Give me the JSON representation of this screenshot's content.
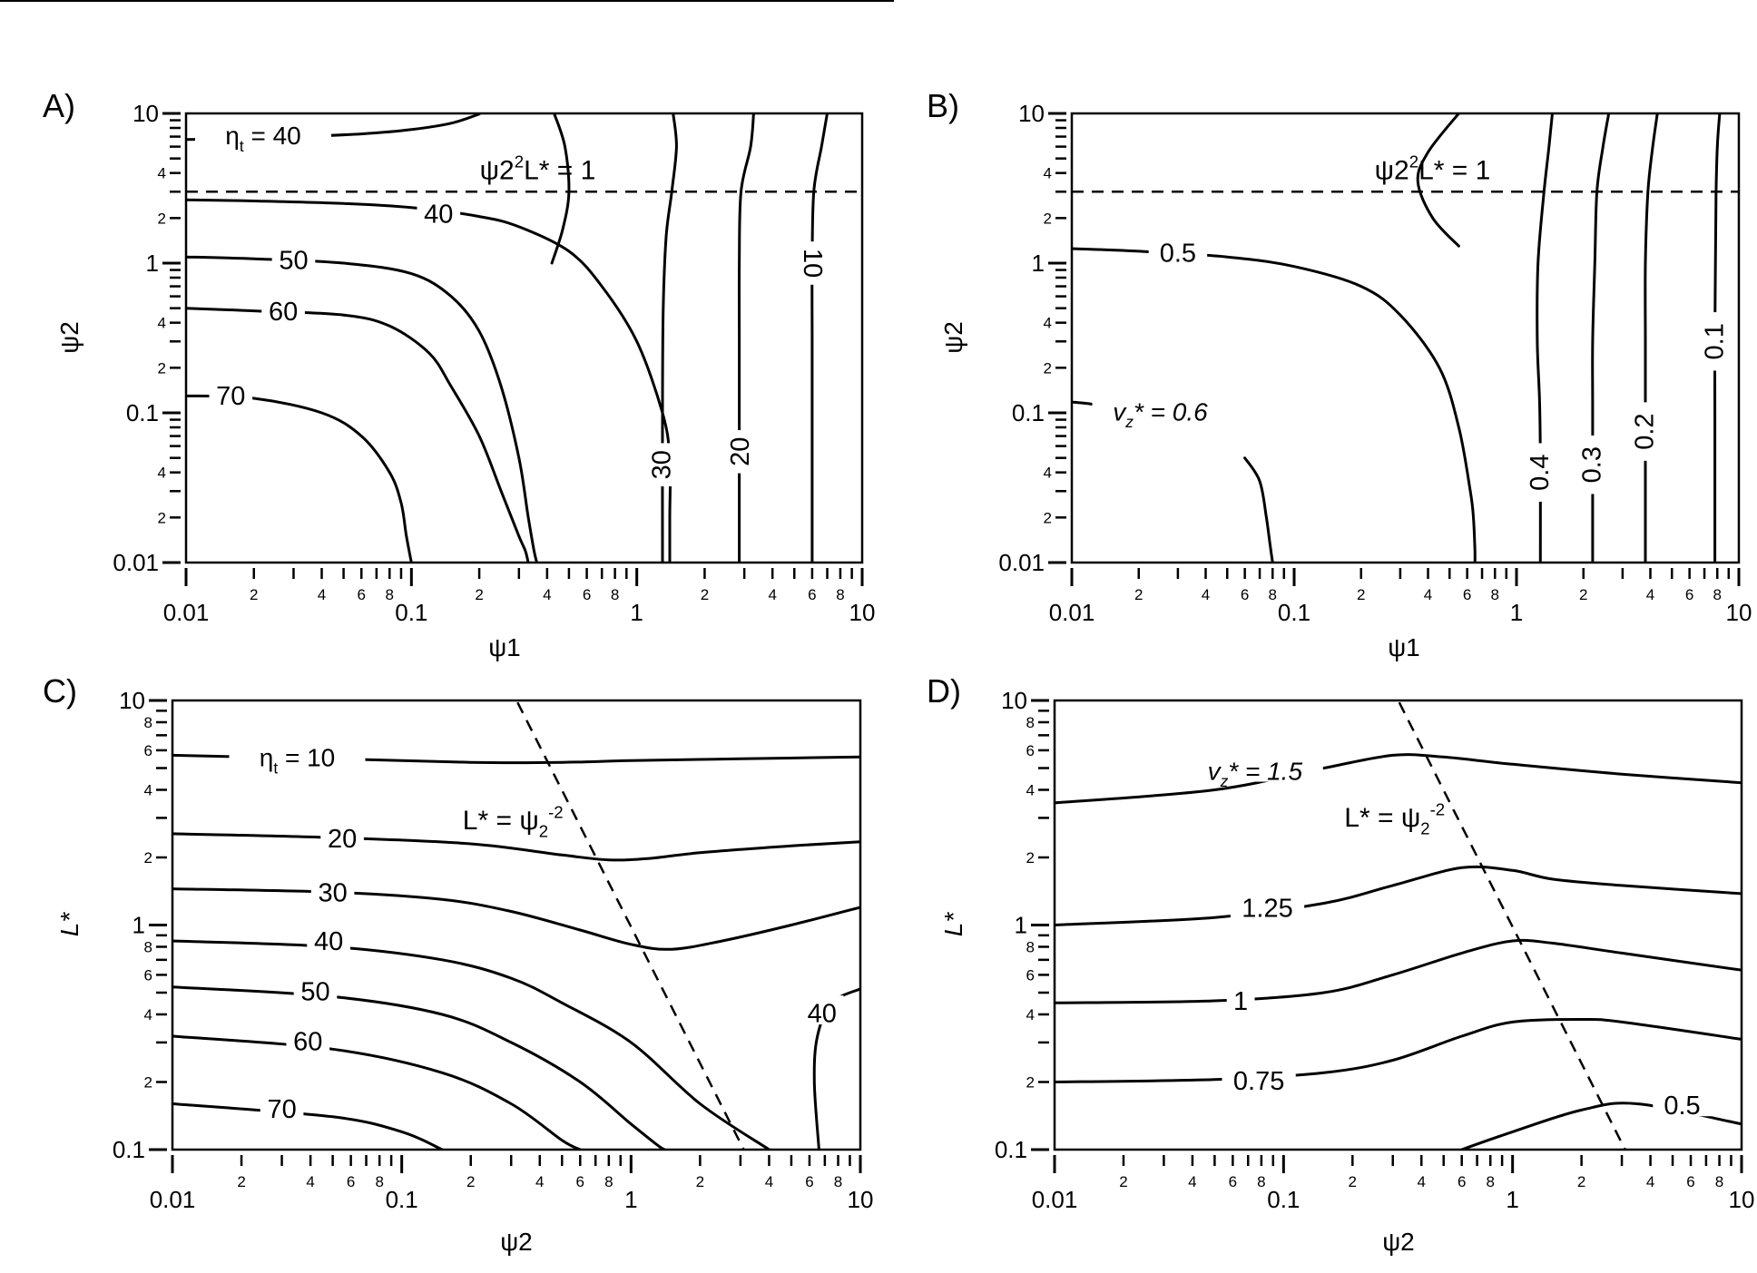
{
  "colors": {
    "line": "#000000",
    "background": "#ffffff"
  },
  "chart_data": [
    {
      "panel": "A)",
      "type": "line",
      "subtype": "contour",
      "xlabel": "ψ1",
      "ylabel": "ψ2",
      "xscale": "log",
      "yscale": "log",
      "xlim": [
        0.01,
        10
      ],
      "ylim": [
        0.01,
        10
      ],
      "x_ticks": [
        "0.01",
        "0.1",
        "1",
        "10"
      ],
      "y_ticks": [
        "0.01",
        "0.1",
        "1",
        "10"
      ],
      "minor_tick_labels": [
        "2",
        "4",
        "6",
        "8"
      ],
      "y_minor_tick_labels": [
        "2",
        "4"
      ],
      "guide": {
        "label": "ψ22L* = 1",
        "label_main": "ψ2",
        "label_sup": "2",
        "label_tail": "L* = 1",
        "x": [
          0.01,
          10
        ],
        "y": [
          3.0,
          3.0
        ]
      },
      "series": [
        {
          "name": "ηt = 40",
          "label_main": "η",
          "label_sub": "t",
          "label_tail": " = 40",
          "label_x": 0.022,
          "label_y": 7.0,
          "x": [
            0.01,
            0.018,
            0.032,
            0.06,
            0.1,
            0.15,
            0.2
          ],
          "y": [
            6.7,
            6.8,
            7.0,
            7.3,
            7.8,
            8.6,
            9.9
          ]
        },
        {
          "name": "40 (upper)",
          "x": [
            0.43,
            0.48,
            0.5,
            0.47,
            0.42
          ],
          "y": [
            10,
            6.0,
            3.0,
            1.7,
            1.0
          ]
        },
        {
          "name": "40",
          "label": "40",
          "label_x": 0.132,
          "label_y": 2.1,
          "x": [
            0.01,
            0.02,
            0.05,
            0.1,
            0.2,
            0.3,
            0.5,
            0.7,
            1.0,
            1.3,
            1.4,
            1.4,
            1.4
          ],
          "y": [
            2.65,
            2.6,
            2.5,
            2.35,
            2.05,
            1.75,
            1.2,
            0.7,
            0.3,
            0.1,
            0.05,
            0.02,
            0.01
          ]
        },
        {
          "name": "30",
          "label": "30",
          "label_x": 1.3,
          "label_y": 0.045,
          "x": [
            1.45,
            1.5,
            1.43,
            1.35,
            1.31,
            1.3,
            1.3
          ],
          "y": [
            10,
            6.0,
            3.0,
            1.5,
            0.5,
            0.1,
            0.01
          ]
        },
        {
          "name": "20",
          "label": "20",
          "label_x": 2.9,
          "label_y": 0.055,
          "x": [
            3.3,
            3.2,
            2.9,
            2.85,
            2.85,
            2.85,
            2.85
          ],
          "y": [
            10,
            6.0,
            3.0,
            1.0,
            0.3,
            0.1,
            0.01
          ]
        },
        {
          "name": "10",
          "label": "10",
          "label_x": 6.0,
          "label_y": 1.0,
          "x": [
            7.0,
            6.6,
            6.1,
            6.0,
            6.0,
            6.0,
            6.0
          ],
          "y": [
            10,
            6.0,
            3.0,
            1.0,
            0.3,
            0.1,
            0.01
          ]
        },
        {
          "name": "50",
          "label": "50",
          "label_x": 0.03,
          "label_y": 1.03,
          "x": [
            0.01,
            0.02,
            0.05,
            0.1,
            0.15,
            0.2,
            0.25,
            0.3,
            0.33,
            0.35,
            0.36
          ],
          "y": [
            1.1,
            1.07,
            1.0,
            0.85,
            0.6,
            0.35,
            0.15,
            0.05,
            0.02,
            0.012,
            0.01
          ]
        },
        {
          "name": "60",
          "label": "60",
          "label_x": 0.027,
          "label_y": 0.47,
          "x": [
            0.01,
            0.02,
            0.05,
            0.08,
            0.12,
            0.15,
            0.2,
            0.25,
            0.3,
            0.32,
            0.33
          ],
          "y": [
            0.5,
            0.48,
            0.45,
            0.38,
            0.25,
            0.15,
            0.07,
            0.03,
            0.015,
            0.012,
            0.01
          ]
        },
        {
          "name": "70",
          "label": "70",
          "label_x": 0.0158,
          "label_y": 0.128,
          "x": [
            0.01,
            0.02,
            0.04,
            0.06,
            0.08,
            0.09,
            0.095,
            0.1
          ],
          "y": [
            0.13,
            0.125,
            0.1,
            0.07,
            0.04,
            0.025,
            0.015,
            0.01
          ]
        }
      ]
    },
    {
      "panel": "B)",
      "type": "line",
      "subtype": "contour",
      "xlabel": "ψ1",
      "ylabel": "ψ2",
      "xscale": "log",
      "yscale": "log",
      "xlim": [
        0.01,
        10
      ],
      "ylim": [
        0.01,
        10
      ],
      "x_ticks": [
        "0.01",
        "0.1",
        "1",
        "10"
      ],
      "y_ticks": [
        "0.01",
        "0.1",
        "1",
        "10"
      ],
      "minor_tick_labels": [
        "2",
        "4",
        "6",
        "8"
      ],
      "y_minor_tick_labels": [
        "2",
        "4"
      ],
      "guide": {
        "label": "ψ22L* = 1",
        "label_main": "ψ2",
        "label_sup": "2",
        "label_tail": "L* = 1",
        "x": [
          0.01,
          10
        ],
        "y": [
          3.0,
          3.0
        ]
      },
      "series": [
        {
          "name": "0.5",
          "label": "0.5",
          "label_x": 0.03,
          "label_y": 1.15,
          "x": [
            0.01,
            0.02,
            0.05,
            0.1,
            0.2,
            0.3,
            0.45,
            0.55,
            0.62,
            0.64,
            0.65,
            0.65
          ],
          "y": [
            1.25,
            1.2,
            1.1,
            0.95,
            0.7,
            0.45,
            0.2,
            0.08,
            0.03,
            0.02,
            0.012,
            0.01
          ]
        },
        {
          "name": "0.5 (upper)",
          "x": [
            0.55,
            0.4,
            0.36,
            0.42,
            0.55
          ],
          "y": [
            10,
            5.5,
            3.5,
            2.0,
            1.3
          ]
        },
        {
          "name": "0.4",
          "label": "0.4",
          "label_x": 1.28,
          "label_y": 0.04,
          "x": [
            1.45,
            1.4,
            1.33,
            1.25,
            1.24,
            1.27,
            1.28,
            1.28
          ],
          "y": [
            10,
            6.0,
            3.0,
            1.0,
            0.3,
            0.12,
            0.05,
            0.01
          ]
        },
        {
          "name": "0.3",
          "label": "0.3",
          "label_x": 2.2,
          "label_y": 0.045,
          "x": [
            2.6,
            2.45,
            2.3,
            2.25,
            2.2,
            2.2,
            2.2
          ],
          "y": [
            10,
            6.0,
            3.0,
            1.0,
            0.3,
            0.1,
            0.01
          ]
        },
        {
          "name": "0.2",
          "label": "0.2",
          "label_x": 3.8,
          "label_y": 0.075,
          "x": [
            4.3,
            4.1,
            3.9,
            3.8,
            3.8,
            3.8,
            3.8
          ],
          "y": [
            10,
            6.0,
            3.0,
            1.0,
            0.3,
            0.1,
            0.01
          ]
        },
        {
          "name": "0.1",
          "label": "0.1",
          "label_x": 7.8,
          "label_y": 0.3,
          "x": [
            8.2,
            8.0,
            7.9,
            7.85,
            7.8,
            7.8,
            7.8
          ],
          "y": [
            10,
            6.0,
            3.0,
            1.0,
            0.3,
            0.1,
            0.01
          ]
        },
        {
          "name": "vz* = 0.6",
          "label_main": "v",
          "label_sub": "z",
          "label_tail": "* = 0.6",
          "label_x": 0.025,
          "label_y": 0.1,
          "x": [
            0.01,
            0.012,
            0.014
          ],
          "y": [
            0.118,
            0.115,
            0.11
          ]
        },
        {
          "name": "0.6 (lower)",
          "x": [
            0.06,
            0.07,
            0.075,
            0.078,
            0.08
          ],
          "y": [
            0.05,
            0.035,
            0.02,
            0.013,
            0.01
          ]
        }
      ]
    },
    {
      "panel": "C)",
      "type": "line",
      "subtype": "contour",
      "xlabel": "ψ2",
      "ylabel": "L*",
      "xscale": "log",
      "yscale": "log",
      "xlim": [
        0.01,
        10
      ],
      "ylim": [
        0.1,
        10
      ],
      "x_ticks": [
        "0.01",
        "0.1",
        "1",
        "10"
      ],
      "y_ticks": [
        "0.1",
        "1",
        "10"
      ],
      "minor_tick_labels": [
        "2",
        "4",
        "6",
        "8"
      ],
      "y_minor_tick_labels": [
        "2",
        "4",
        "6",
        "8"
      ],
      "guide": {
        "label": "L* = ψ2-2",
        "label_main": "L* = ψ",
        "label_sub": "2",
        "label_sup": "-2",
        "x": [
          0.32,
          3.1
        ],
        "y": [
          9.8,
          0.1
        ]
      },
      "series": [
        {
          "name": "ηt = 10",
          "label_main": "η",
          "label_sub": "t",
          "label_tail": " = 10",
          "label_x": 0.035,
          "label_y": 5.5,
          "x": [
            0.01,
            0.05,
            0.2,
            0.5,
            1.0,
            3.0,
            10
          ],
          "y": [
            5.7,
            5.5,
            5.3,
            5.3,
            5.4,
            5.5,
            5.6
          ]
        },
        {
          "name": "20",
          "label": "20",
          "label_x": 0.055,
          "label_y": 2.4,
          "x": [
            0.01,
            0.05,
            0.2,
            0.5,
            0.8,
            1.2,
            2.0,
            5.0,
            10
          ],
          "y": [
            2.55,
            2.45,
            2.3,
            2.05,
            1.95,
            1.98,
            2.1,
            2.25,
            2.35
          ]
        },
        {
          "name": "30",
          "label": "30",
          "label_x": 0.05,
          "label_y": 1.38,
          "x": [
            0.01,
            0.05,
            0.15,
            0.3,
            0.6,
            1.0,
            1.5,
            2.5,
            5.0,
            10
          ],
          "y": [
            1.45,
            1.4,
            1.3,
            1.15,
            0.95,
            0.82,
            0.78,
            0.85,
            1.0,
            1.2
          ]
        },
        {
          "name": "40",
          "label": "40",
          "label_x": 0.048,
          "label_y": 0.84,
          "x": [
            0.01,
            0.05,
            0.15,
            0.3,
            0.5,
            1.0,
            2.0,
            4.0
          ],
          "y": [
            0.85,
            0.8,
            0.7,
            0.58,
            0.45,
            0.3,
            0.16,
            0.1
          ]
        },
        {
          "name": "40 (right)",
          "label": "40",
          "label_x": 6.8,
          "label_y": 0.4,
          "x": [
            6.6,
            6.3,
            6.5,
            7.5,
            10
          ],
          "y": [
            0.1,
            0.2,
            0.32,
            0.45,
            0.52
          ]
        },
        {
          "name": "50",
          "label": "50",
          "label_x": 0.042,
          "label_y": 0.5,
          "x": [
            0.01,
            0.05,
            0.15,
            0.3,
            0.6,
            1.0,
            1.3,
            1.4
          ],
          "y": [
            0.53,
            0.48,
            0.4,
            0.3,
            0.2,
            0.13,
            0.105,
            0.1
          ]
        },
        {
          "name": "60",
          "label": "60",
          "label_x": 0.039,
          "label_y": 0.3,
          "x": [
            0.01,
            0.05,
            0.15,
            0.3,
            0.5,
            0.6
          ],
          "y": [
            0.32,
            0.28,
            0.22,
            0.16,
            0.11,
            0.1
          ]
        },
        {
          "name": "70",
          "label": "70",
          "label_x": 0.03,
          "label_y": 0.15,
          "x": [
            0.01,
            0.05,
            0.1,
            0.15
          ],
          "y": [
            0.16,
            0.14,
            0.12,
            0.1
          ]
        }
      ]
    },
    {
      "panel": "D)",
      "type": "line",
      "subtype": "contour",
      "xlabel": "ψ2",
      "ylabel": "L*",
      "xscale": "log",
      "yscale": "log",
      "xlim": [
        0.01,
        10
      ],
      "ylim": [
        0.1,
        10
      ],
      "x_ticks": [
        "0.01",
        "0.1",
        "1",
        "10"
      ],
      "y_ticks": [
        "0.1",
        "1",
        "10"
      ],
      "minor_tick_labels": [
        "2",
        "4",
        "6",
        "8"
      ],
      "y_minor_tick_labels": [
        "2",
        "4",
        "6",
        "8"
      ],
      "guide": {
        "label": "L* = ψ2-2",
        "label_main": "L* = ψ",
        "label_sub": "2",
        "label_sup": "-2",
        "x": [
          0.32,
          3.1
        ],
        "y": [
          9.8,
          0.1
        ]
      },
      "series": [
        {
          "name": "vz* = 1.5",
          "label_main": "v",
          "label_sub": "z",
          "label_tail": "* = 1.5",
          "label_x": 0.075,
          "label_y": 4.8,
          "x": [
            0.01,
            0.05,
            0.15,
            0.3,
            0.5,
            1.0,
            3.0,
            10
          ],
          "y": [
            3.5,
            4.0,
            5.0,
            5.7,
            5.6,
            5.2,
            4.7,
            4.3
          ]
        },
        {
          "name": "1.25",
          "label": "1.25",
          "label_x": 0.085,
          "label_y": 1.18,
          "x": [
            0.01,
            0.05,
            0.15,
            0.3,
            0.6,
            1.0,
            1.5,
            3.0,
            10
          ],
          "y": [
            1.0,
            1.08,
            1.25,
            1.5,
            1.8,
            1.75,
            1.6,
            1.5,
            1.38
          ]
        },
        {
          "name": "1",
          "label": "1",
          "label_x": 0.065,
          "label_y": 0.455,
          "x": [
            0.01,
            0.05,
            0.15,
            0.3,
            0.6,
            1.0,
            1.5,
            3.0,
            10
          ],
          "y": [
            0.45,
            0.46,
            0.5,
            0.6,
            0.75,
            0.85,
            0.83,
            0.75,
            0.63
          ]
        },
        {
          "name": "0.75",
          "label": "0.75",
          "label_x": 0.078,
          "label_y": 0.2,
          "x": [
            0.01,
            0.05,
            0.15,
            0.3,
            0.6,
            1.0,
            2.0,
            3.0,
            10
          ],
          "y": [
            0.2,
            0.205,
            0.22,
            0.25,
            0.32,
            0.37,
            0.38,
            0.37,
            0.31
          ]
        },
        {
          "name": "0.5",
          "label": "0.5",
          "label_x": 5.5,
          "label_y": 0.156,
          "x": [
            0.6,
            1.0,
            2.0,
            3.5,
            10
          ],
          "y": [
            0.1,
            0.12,
            0.15,
            0.16,
            0.13
          ]
        }
      ]
    }
  ]
}
